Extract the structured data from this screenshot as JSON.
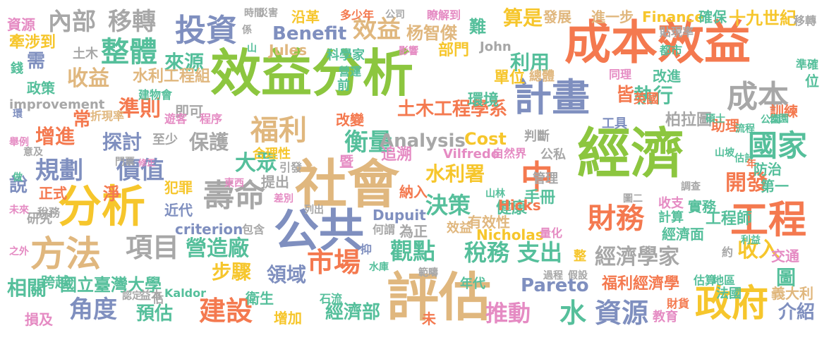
{
  "palette": {
    "green": "#8cc63f",
    "orange": "#f4794f",
    "slate": "#7f8fbf",
    "tan": "#e0b77e",
    "yellow": "#f6c62c",
    "gray": "#a7a7a7",
    "teal": "#55bf9b",
    "pink": "#e58bc3",
    "deep_orange": "#f26a2e",
    "navy": "#6b7db3"
  },
  "words": [
    {
      "text": "經濟",
      "color": "green"
    },
    {
      "text": "成本效益",
      "color": "orange"
    },
    {
      "text": "效益分析",
      "color": "green"
    },
    {
      "text": "社會",
      "color": "tan"
    },
    {
      "text": "評估",
      "color": "tan"
    },
    {
      "text": "分析",
      "color": "yellow"
    },
    {
      "text": "公共",
      "color": "slate"
    },
    {
      "text": "工程",
      "color": "orange"
    },
    {
      "text": "政府",
      "color": "yellow"
    },
    {
      "text": "方法",
      "color": "tan"
    },
    {
      "text": "計畫",
      "color": "slate"
    },
    {
      "text": "投資",
      "color": "slate"
    },
    {
      "text": "成本",
      "color": "gray"
    },
    {
      "text": "財務",
      "color": "orange"
    },
    {
      "text": "中",
      "color": "orange"
    },
    {
      "text": "壽命",
      "color": "gray"
    },
    {
      "text": "國家",
      "color": "teal"
    },
    {
      "text": "福利",
      "color": "tan"
    },
    {
      "text": "整體",
      "color": "teal"
    },
    {
      "text": "項目",
      "color": "gray"
    },
    {
      "text": "市場",
      "color": "orange"
    },
    {
      "text": "建設",
      "color": "orange"
    },
    {
      "text": "資源",
      "color": "slate"
    },
    {
      "text": "推動",
      "color": "pink"
    },
    {
      "text": "觀點",
      "color": "teal"
    },
    {
      "text": "稅務",
      "color": "teal"
    },
    {
      "text": "支出",
      "color": "teal"
    },
    {
      "text": "水",
      "color": "teal"
    },
    {
      "text": "規劃",
      "color": "slate"
    },
    {
      "text": "價值",
      "color": "slate"
    },
    {
      "text": "角度",
      "color": "slate"
    },
    {
      "text": "衡量",
      "color": "teal"
    },
    {
      "text": "決策",
      "color": "teal"
    },
    {
      "text": "開發",
      "color": "orange"
    },
    {
      "text": "經濟學家",
      "color": "gray"
    },
    {
      "text": "效益",
      "color": "tan"
    },
    {
      "text": "內部",
      "color": "gray"
    },
    {
      "text": "移轉",
      "color": "gray"
    },
    {
      "text": "準則",
      "color": "orange"
    },
    {
      "text": "利用",
      "color": "teal"
    },
    {
      "text": "執行",
      "color": "teal"
    },
    {
      "text": "大眾",
      "color": "teal"
    },
    {
      "text": "營造廠",
      "color": "teal"
    },
    {
      "text": "水利署",
      "color": "yellow"
    },
    {
      "text": "收入",
      "color": "yellow"
    },
    {
      "text": "來源",
      "color": "teal"
    },
    {
      "text": "收益",
      "color": "tan"
    },
    {
      "text": "算是",
      "color": "yellow"
    },
    {
      "text": "增進",
      "color": "orange"
    },
    {
      "text": "探討",
      "color": "slate"
    },
    {
      "text": "保護",
      "color": "gray"
    },
    {
      "text": "步驟",
      "color": "yellow"
    },
    {
      "text": "領域",
      "color": "slate"
    },
    {
      "text": "相關",
      "color": "teal"
    },
    {
      "text": "預估",
      "color": "teal"
    },
    {
      "text": "介紹",
      "color": "slate"
    },
    {
      "text": "圖",
      "color": "teal"
    },
    {
      "text": "Pareto",
      "color": "slate"
    },
    {
      "text": "Benefit",
      "color": "slate"
    },
    {
      "text": "Analysis",
      "color": "gray"
    },
    {
      "text": "Cost",
      "color": "yellow"
    },
    {
      "text": "土木工程學系",
      "color": "orange"
    },
    {
      "text": "經濟部",
      "color": "teal"
    },
    {
      "text": "國立臺灣大學",
      "color": "teal"
    },
    {
      "text": "福利經濟學",
      "color": "orange"
    },
    {
      "text": "水利工程組",
      "color": "tan"
    },
    {
      "text": "杨智傑",
      "color": "tan"
    },
    {
      "text": "發展",
      "color": "tan"
    },
    {
      "text": "進一步",
      "color": "tan"
    },
    {
      "text": "Finance",
      "color": "yellow"
    },
    {
      "text": "確保",
      "color": "teal"
    },
    {
      "text": "十九世紀",
      "color": "yellow"
    },
    {
      "text": "沿革",
      "color": "yellow"
    },
    {
      "text": "多少年",
      "color": "orange"
    },
    {
      "text": "公司",
      "color": "gray"
    },
    {
      "text": "瞭解到",
      "color": "pink"
    },
    {
      "text": "貼現率",
      "color": "gray"
    },
    {
      "text": "資源",
      "color": "pink"
    },
    {
      "text": "牽涉到",
      "color": "yellow"
    },
    {
      "text": "土木",
      "color": "gray"
    },
    {
      "text": "需",
      "color": "slate"
    },
    {
      "text": "政策",
      "color": "teal"
    },
    {
      "text": "improvement",
      "color": "gray"
    },
    {
      "text": "Jules",
      "color": "tan"
    },
    {
      "text": "科學家",
      "color": "teal"
    },
    {
      "text": "John",
      "color": "gray"
    },
    {
      "text": "部門",
      "color": "yellow"
    },
    {
      "text": "影響",
      "color": "pink"
    },
    {
      "text": "難",
      "color": "teal"
    },
    {
      "text": "單位",
      "color": "yellow"
    },
    {
      "text": "總體",
      "color": "tan"
    },
    {
      "text": "都市",
      "color": "teal"
    },
    {
      "text": "營運",
      "color": "teal"
    },
    {
      "text": "同理",
      "color": "pink"
    },
    {
      "text": "改進",
      "color": "teal"
    },
    {
      "text": "皆",
      "color": "orange"
    },
    {
      "text": "英國",
      "color": "orange"
    },
    {
      "text": "環境",
      "color": "teal"
    },
    {
      "text": "常",
      "color": "orange"
    },
    {
      "text": "折現率",
      "color": "tan"
    },
    {
      "text": "即可",
      "color": "gray"
    },
    {
      "text": "遊客",
      "color": "pink"
    },
    {
      "text": "程序",
      "color": "pink"
    },
    {
      "text": "建物會",
      "color": "teal"
    },
    {
      "text": "改變",
      "color": "orange"
    },
    {
      "text": "柏拉圖",
      "color": "gray"
    },
    {
      "text": "助理",
      "color": "orange"
    },
    {
      "text": "訓練",
      "color": "orange"
    },
    {
      "text": "工具",
      "color": "slate"
    },
    {
      "text": "至少",
      "color": "gray"
    },
    {
      "text": "判斷",
      "color": "gray"
    },
    {
      "text": "追溯",
      "color": "pink"
    },
    {
      "text": "Vilfredo",
      "color": "pink"
    },
    {
      "text": "自然界",
      "color": "pink"
    },
    {
      "text": "公私",
      "color": "gray"
    },
    {
      "text": "合理性",
      "color": "yellow"
    },
    {
      "text": "引發",
      "color": "gray"
    },
    {
      "text": "犯罪",
      "color": "yellow"
    },
    {
      "text": "提出",
      "color": "gray"
    },
    {
      "text": "納入",
      "color": "orange"
    },
    {
      "text": "管理",
      "color": "gray"
    },
    {
      "text": "第一",
      "color": "teal"
    },
    {
      "text": "防治",
      "color": "teal"
    },
    {
      "text": "手冊",
      "color": "teal"
    },
    {
      "text": "健康",
      "color": "teal"
    },
    {
      "text": "Hicks",
      "color": "orange"
    },
    {
      "text": "Dupuit",
      "color": "slate"
    },
    {
      "text": "有效性",
      "color": "tan"
    },
    {
      "text": "Nicholas",
      "color": "yellow"
    },
    {
      "text": "量化",
      "color": "pink"
    },
    {
      "text": "criterion",
      "color": "slate"
    },
    {
      "text": "包含",
      "color": "gray"
    },
    {
      "text": "何謂",
      "color": "gray"
    },
    {
      "text": "為正",
      "color": "gray"
    },
    {
      "text": "效益",
      "color": "tan"
    },
    {
      "text": "收支",
      "color": "pink"
    },
    {
      "text": "實務",
      "color": "teal"
    },
    {
      "text": "計算",
      "color": "teal"
    },
    {
      "text": "工程師",
      "color": "teal"
    },
    {
      "text": "經濟面",
      "color": "teal"
    },
    {
      "text": "近代",
      "color": "slate"
    },
    {
      "text": "正式",
      "color": "orange"
    },
    {
      "text": "研究",
      "color": "gray"
    },
    {
      "text": "跨越",
      "color": "teal"
    },
    {
      "text": "Kaldor",
      "color": "teal"
    },
    {
      "text": "衛生",
      "color": "teal"
    },
    {
      "text": "石流",
      "color": "teal"
    },
    {
      "text": "增加",
      "color": "yellow"
    },
    {
      "text": "年代",
      "color": "teal"
    },
    {
      "text": "教育",
      "color": "pink"
    },
    {
      "text": "財貨",
      "color": "orange"
    },
    {
      "text": "地區",
      "color": "teal"
    },
    {
      "text": "法國",
      "color": "teal"
    },
    {
      "text": "估算",
      "color": "teal"
    },
    {
      "text": "交通",
      "color": "pink"
    },
    {
      "text": "損及",
      "color": "pink"
    },
    {
      "text": "益本",
      "color": "gray"
    },
    {
      "text": "未",
      "color": "orange"
    },
    {
      "text": "義大利",
      "color": "tan"
    },
    {
      "text": "說",
      "color": "slate"
    },
    {
      "text": "淨",
      "color": "orange"
    },
    {
      "text": "修正",
      "color": "pink"
    },
    {
      "text": "稅務",
      "color": "gray"
    },
    {
      "text": "未來",
      "color": "pink"
    },
    {
      "text": "做",
      "color": "teal"
    },
    {
      "text": "舉例",
      "color": "pink"
    },
    {
      "text": "意及",
      "color": "gray"
    },
    {
      "text": "暨",
      "color": "pink"
    },
    {
      "text": "前",
      "color": "teal"
    },
    {
      "text": "東西",
      "color": "pink"
    },
    {
      "text": "差別",
      "color": "pink"
    },
    {
      "text": "列出",
      "color": "gray"
    },
    {
      "text": "水庫",
      "color": "teal"
    },
    {
      "text": "過程",
      "color": "gray"
    },
    {
      "text": "假設",
      "color": "gray"
    },
    {
      "text": "範疇",
      "color": "gray"
    },
    {
      "text": "圖二",
      "color": "gray"
    },
    {
      "text": "調查",
      "color": "gray"
    },
    {
      "text": "估計",
      "color": "teal"
    },
    {
      "text": "流程",
      "color": "teal"
    },
    {
      "text": "公園",
      "color": "teal"
    },
    {
      "text": "碩士",
      "color": "teal"
    },
    {
      "text": "山坡",
      "color": "teal"
    },
    {
      "text": "移轉",
      "color": "gray"
    },
    {
      "text": "準確",
      "color": "teal"
    },
    {
      "text": "位",
      "color": "teal"
    },
    {
      "text": "錢",
      "color": "teal"
    },
    {
      "text": "環",
      "color": "slate"
    },
    {
      "text": "時間",
      "color": "gray"
    },
    {
      "text": "係",
      "color": "gray"
    },
    {
      "text": "災害",
      "color": "gray"
    },
    {
      "text": "山",
      "color": "teal"
    },
    {
      "text": "門票",
      "color": "gray"
    },
    {
      "text": "之外",
      "color": "pink"
    },
    {
      "text": "年",
      "color": "orange"
    },
    {
      "text": "約",
      "color": "gray"
    },
    {
      "text": "整",
      "color": "yellow"
    },
    {
      "text": "抑",
      "color": "slate"
    },
    {
      "text": "山林",
      "color": "teal"
    },
    {
      "text": "認定",
      "color": "gray"
    },
    {
      "text": "估",
      "color": "gray"
    },
    {
      "text": "利益",
      "color": "teal"
    },
    {
      "text": "公園",
      "color": "teal"
    }
  ]
}
